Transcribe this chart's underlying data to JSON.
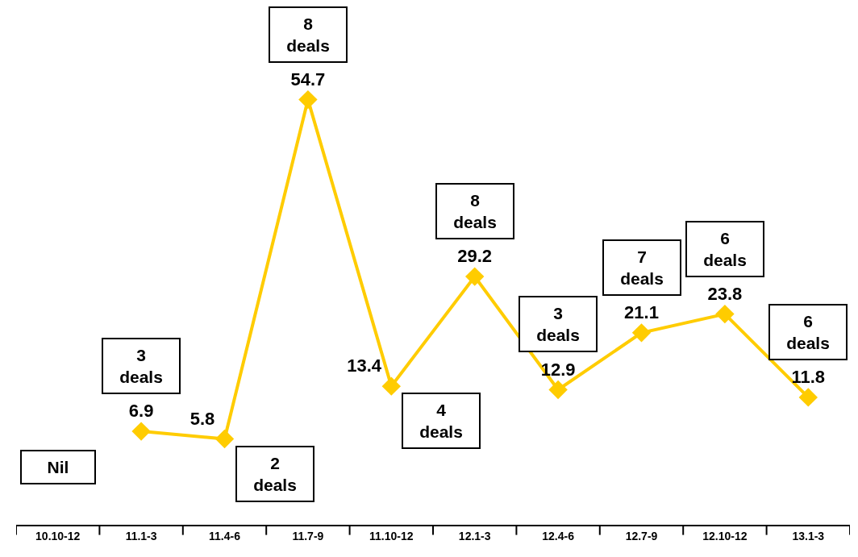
{
  "chart_data": {
    "type": "line",
    "categories": [
      "10.10-12",
      "11.1-3",
      "11.4-6",
      "11.7-9",
      "11.10-12",
      "12.1-3",
      "12.4-6",
      "12.7-9",
      "12.10-12",
      "13.1-3"
    ],
    "values": [
      null,
      6.9,
      5.8,
      54.7,
      13.4,
      29.2,
      12.9,
      21.1,
      23.8,
      11.8
    ],
    "color": "#ffcc00",
    "marker": "diamond",
    "line_style": "solid",
    "data_labels": true,
    "grid": false,
    "legend": false,
    "tick_labels": "x",
    "annotations": [
      "Nil",
      {
        "text": "3\ndeals",
        "x": "11.1-3",
        "y": 6.9
      },
      {
        "text": "2\ndeals",
        "x": "11.4-6",
        "y": 5.8
      },
      {
        "text": "8\ndeals",
        "x": "11.7-9",
        "y": 54.7
      },
      {
        "text": "4\ndeals",
        "x": "11.10-12",
        "y": 13.4
      },
      {
        "text": "8\ndeals",
        "x": "12.1-3",
        "y": 29.2
      },
      {
        "text": "3\ndeals",
        "x": "12.4-6",
        "y": 12.9
      },
      {
        "text": "7\ndeals",
        "x": "12.7-9",
        "y": 21.1
      },
      {
        "text": "6\ndeals",
        "x": "12.10-12",
        "y": 23.8
      },
      {
        "text": "6\ndeals",
        "x": "13.1-3",
        "y": 11.8
      }
    ]
  }
}
